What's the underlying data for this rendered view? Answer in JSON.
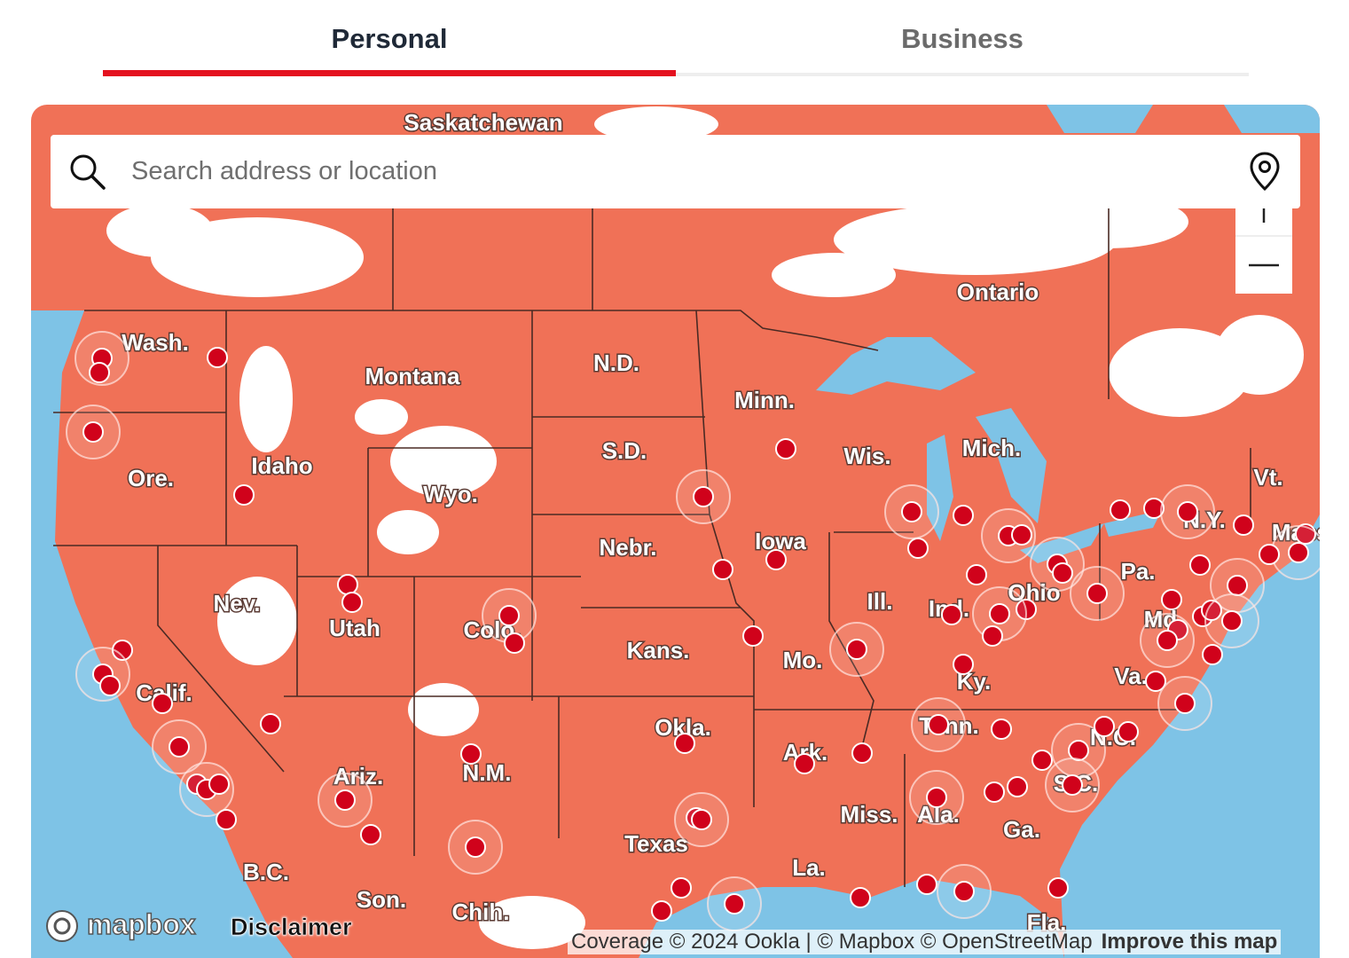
{
  "tabs": [
    "Personal",
    "Business"
  ],
  "search": {
    "placeholder": "Search address or location"
  },
  "map": {
    "labels": [
      "Saskatchewan",
      "Ontario",
      "Wash.",
      "Montana",
      "N.D.",
      "Minn.",
      "Wis.",
      "Mich.",
      "Vt.",
      "Ore.",
      "Idaho",
      "Wyo.",
      "S.D.",
      "Iowa",
      "N.Y.",
      "Mass.",
      "Nebr.",
      "Pa.",
      "Ohio",
      "Nev.",
      "Utah",
      "Colo.",
      "Ill.",
      "Ind.",
      "Kans.",
      "Mo.",
      "Ky.",
      "Va.",
      "Md.",
      "Calif.",
      "Okla.",
      "Tenn.",
      "Ark.",
      "N.C.",
      "Ariz.",
      "N.M.",
      "S.C.",
      "Miss.",
      "Ala.",
      "Ga.",
      "Texas",
      "La.",
      "B.C.",
      "Son.",
      "Chih.",
      "Fla."
    ],
    "logo": "mapbox",
    "disclaimer": "Disclaimer",
    "coverage": "Coverage © 2024 Ookla | © Mapbox © OpenStreetMap",
    "improve": "Improve this map"
  }
}
